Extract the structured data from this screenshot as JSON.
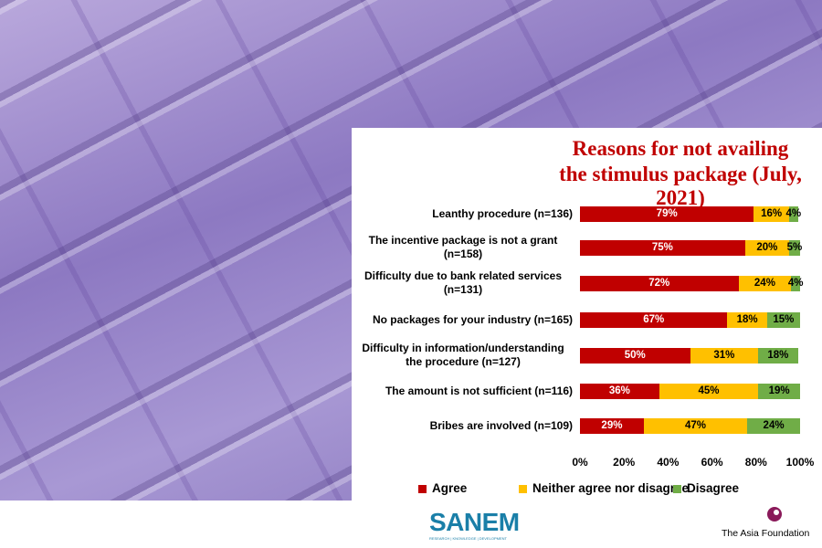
{
  "chart_data": {
    "type": "stacked-bar-horizontal",
    "title": [
      "Reasons for not availing",
      "the stimulus package (July, 2021)"
    ],
    "categories": [
      "Leanthy procedure (n=136)",
      "The incentive package is not a grant (n=158)",
      "Difficulty due to bank related services (n=131)",
      "No packages for your industry (n=165)",
      "Difficulty in information/understanding the procedure (n=127)",
      "The amount is not sufficient (n=116)",
      "Bribes are involved (n=109)"
    ],
    "series": [
      {
        "name": "Agree",
        "color": "#c00000",
        "values": [
          79,
          75,
          72,
          67,
          50,
          36,
          29
        ],
        "value_labels": [
          "79%",
          "75%",
          "72%",
          "67%",
          "50%",
          "36%",
          "29%"
        ]
      },
      {
        "name": "Neither agree nor disagree",
        "color": "#ffc000",
        "values": [
          16,
          20,
          24,
          18,
          31,
          45,
          47
        ],
        "value_labels": [
          "16%",
          "20%",
          "24%",
          "18%",
          "31%",
          "45%",
          "47%"
        ]
      },
      {
        "name": "Disagree",
        "color": "#70ad47",
        "values": [
          4,
          5,
          4,
          15,
          18,
          19,
          24
        ],
        "value_labels": [
          "4%",
          "5%",
          "4%",
          "15%",
          "18%",
          "19%",
          "24%"
        ]
      }
    ],
    "xlim": [
      0,
      100
    ],
    "xticks": [
      {
        "value": 0,
        "label": "0%"
      },
      {
        "value": 20,
        "label": "20%"
      },
      {
        "value": 40,
        "label": "40%"
      },
      {
        "value": 60,
        "label": "60%"
      },
      {
        "value": 80,
        "label": "80%"
      },
      {
        "value": 100,
        "label": "100%"
      }
    ],
    "legend": "bottom",
    "grid": false
  },
  "footer": {
    "logo_left": "SANEM",
    "logo_left_tagline": "RESEARCH | KNOWLEDGE | DEVELOPMENT",
    "logo_right": "The Asia Foundation"
  }
}
